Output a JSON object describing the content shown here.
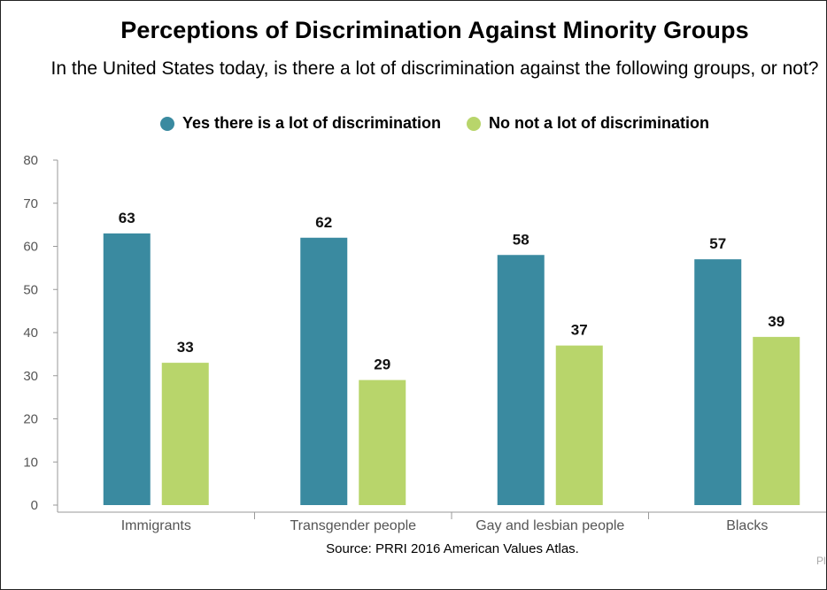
{
  "chart_data": {
    "type": "bar",
    "title": "Perceptions of Discrimination Against Minority Groups",
    "subtitle": "In the United States today, is there a lot of discrimination against the following groups, or not?",
    "categories": [
      "Immigrants",
      "Transgender people",
      "Gay and lesbian people",
      "Blacks"
    ],
    "series": [
      {
        "name": "Yes there is a lot of discrimination",
        "color": "#3a8aa0",
        "values": [
          63,
          62,
          58,
          57
        ]
      },
      {
        "name": "No not a lot of discrimination",
        "color": "#b8d56b",
        "values": [
          33,
          29,
          37,
          39
        ]
      }
    ],
    "ylim": [
      0,
      80
    ],
    "yticks": [
      "0",
      "10",
      "20",
      "30",
      "40",
      "50",
      "60",
      "70",
      "80"
    ],
    "grid": false,
    "legend": "top",
    "source": "Source: PRRI 2016 American Values Atlas.",
    "credit": "Pl"
  }
}
